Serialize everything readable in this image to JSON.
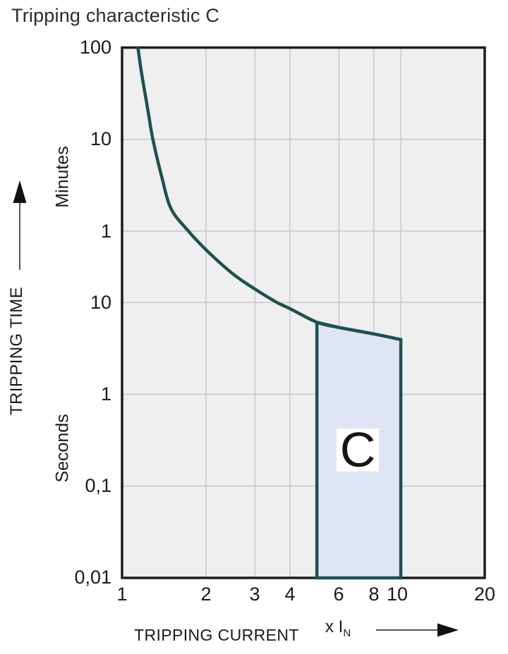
{
  "page": {
    "title": "Tripping characteristic C"
  },
  "chart_data": {
    "type": "line",
    "title": "Tripping characteristic C",
    "grid": true,
    "legend": false,
    "x_axis": {
      "label": "TRIPPING CURRENT",
      "unit_label": "x I",
      "unit_sub": "N",
      "scale": "log",
      "range": [
        1,
        20
      ],
      "tick_labels": [
        "1",
        "2",
        "3",
        "4",
        "6",
        "8",
        "10",
        "20"
      ],
      "tick_values": [
        1,
        2,
        3,
        4,
        6,
        8,
        10,
        20
      ],
      "gridline_values": [
        2,
        3,
        4,
        6,
        8,
        10
      ]
    },
    "y_axis": {
      "label": "TRIPPING TIME",
      "scale": "log",
      "range_seconds": [
        0.01,
        6000
      ],
      "upper_unit": "Minutes",
      "lower_unit": "Seconds",
      "tick_labels": [
        "100",
        "10",
        "1",
        "10",
        "1",
        "0,1",
        "0,01"
      ],
      "tick_values_seconds": [
        6000,
        600,
        60,
        10,
        1,
        0.1,
        0.01
      ],
      "gridline_values_seconds": [
        600,
        60,
        10,
        1,
        0.1
      ]
    },
    "curve_points": [
      {
        "x": 1.14,
        "t": 6000
      },
      {
        "x": 1.175,
        "t": 3160
      },
      {
        "x": 1.23,
        "t": 1400
      },
      {
        "x": 1.29,
        "t": 600
      },
      {
        "x": 1.39,
        "t": 230
      },
      {
        "x": 1.5,
        "t": 105
      },
      {
        "x": 1.73,
        "t": 60
      },
      {
        "x": 2.03,
        "t": 36
      },
      {
        "x": 2.5,
        "t": 20.5
      },
      {
        "x": 3,
        "t": 14
      },
      {
        "x": 3.6,
        "t": 10
      },
      {
        "x": 4,
        "t": 8.6
      },
      {
        "x": 5,
        "t": 6.1
      },
      {
        "x": 6,
        "t": 5.35
      },
      {
        "x": 8,
        "t": 4.55
      },
      {
        "x": 10,
        "t": 3.95
      }
    ],
    "region": {
      "label": "C",
      "x_min": 5,
      "x_max": 10,
      "t_bottom": 0.01
    },
    "colors": {
      "curve": "#1e5150",
      "region_fill": "#dfe5f4",
      "plot_bg": "#efefef",
      "grid": "#c8c8cc",
      "border": "#1c1c1c",
      "text": "#1a1a1a"
    }
  }
}
